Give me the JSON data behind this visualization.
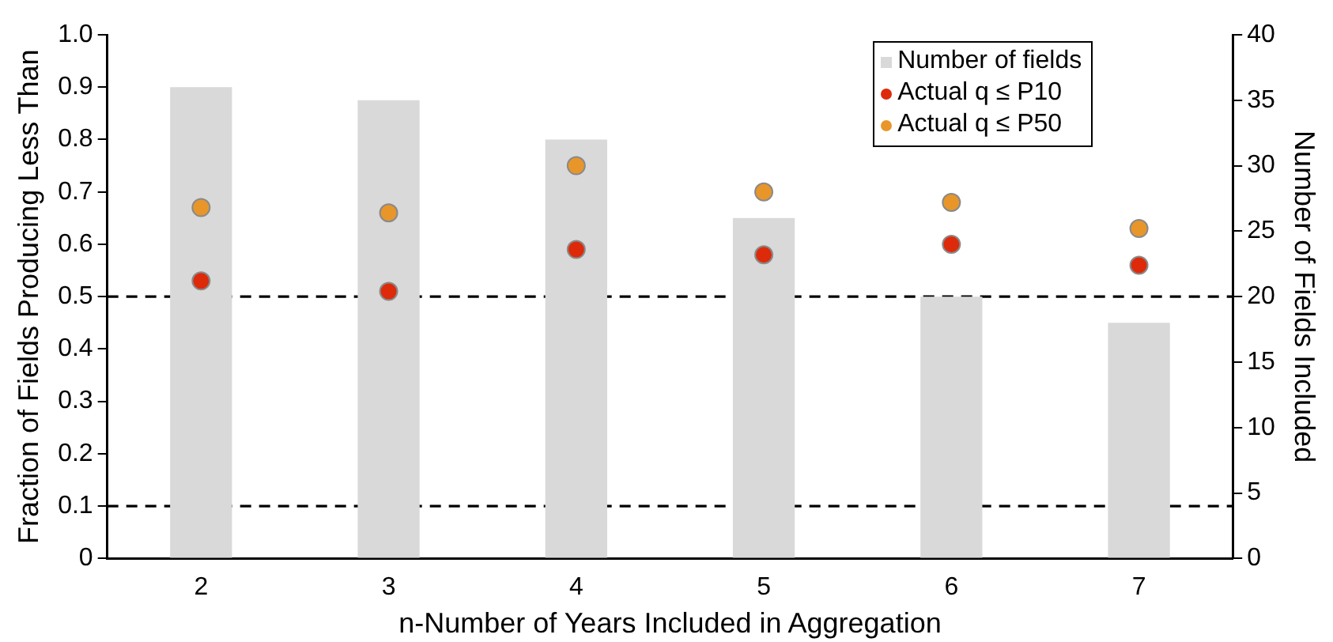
{
  "chart_data": {
    "type": "bar",
    "xlabel": "n-Number of Years Included in Aggregation",
    "ylabel": "Fraction of Fields Producing Less Than",
    "y2label": "Number of Fields Included",
    "categories": [
      "2",
      "3",
      "4",
      "5",
      "6",
      "7"
    ],
    "series": [
      {
        "name": "Number of fields",
        "axis": "y2",
        "color": "#d9d9d9",
        "values": [
          36,
          35,
          32,
          26,
          20,
          18
        ]
      },
      {
        "name": "Actual q ≤ P10",
        "type": "scatter",
        "color": "#dd2a0a",
        "x": [
          "2",
          "3",
          "4",
          "5",
          "6",
          "7"
        ],
        "values": [
          0.53,
          0.51,
          0.59,
          0.58,
          0.6,
          0.56
        ]
      },
      {
        "name": "Actual q ≤ P50",
        "type": "scatter",
        "color": "#e8962a",
        "x": [
          "2",
          "3",
          "4",
          "5",
          "6",
          "7"
        ],
        "values": [
          0.67,
          0.66,
          0.75,
          0.7,
          0.68,
          0.63
        ]
      }
    ],
    "ylim": [
      0,
      1
    ],
    "yticks": [
      0,
      0.1,
      0.2,
      0.3,
      0.4,
      0.5,
      0.6,
      0.7,
      0.8,
      0.9,
      {
        "value": 1,
        "label": "1.0"
      }
    ],
    "y2lim": [
      0,
      40
    ],
    "y2ticks": [
      0,
      5,
      10,
      15,
      20,
      25,
      30,
      35,
      40
    ],
    "ref_lines": [
      {
        "axis": "y",
        "value": 0.5,
        "line_style": "dashed"
      },
      {
        "axis": "y",
        "value": 0.1,
        "line_style": "dashed"
      }
    ],
    "grid": false,
    "legend": "top right",
    "marker": "circle"
  }
}
